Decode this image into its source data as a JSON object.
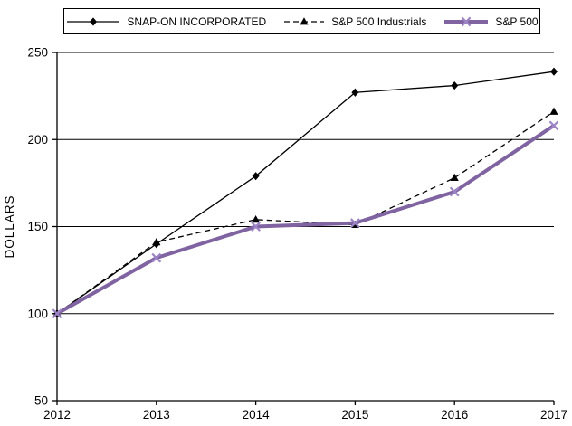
{
  "chart_data": {
    "type": "line",
    "title": "",
    "xlabel": "",
    "ylabel": "DOLLARS",
    "x": [
      2012,
      2013,
      2014,
      2015,
      2016,
      2017
    ],
    "ylim": [
      50,
      250
    ],
    "yticks": [
      50,
      100,
      150,
      200,
      250
    ],
    "gridlines": [
      100,
      150,
      200,
      250
    ],
    "grid": "horizontal",
    "legend_position": "top",
    "series": [
      {
        "name": "SNAP-ON INCORPORATED",
        "values": [
          100,
          140,
          179,
          227,
          231,
          239
        ],
        "color": "#000000",
        "line_style": "solid",
        "marker": "diamond",
        "line_width": 1.3
      },
      {
        "name": "S&P 500 Industrials",
        "values": [
          100,
          141,
          154,
          151,
          178,
          216
        ],
        "color": "#000000",
        "line_style": "dashed",
        "marker": "triangle",
        "line_width": 1.3
      },
      {
        "name": "S&P 500",
        "values": [
          100,
          132,
          150,
          152,
          170,
          208
        ],
        "color": "#8064A2",
        "marker_color": "#9C84C6",
        "line_style": "solid",
        "marker": "x",
        "line_width": 4
      }
    ]
  }
}
